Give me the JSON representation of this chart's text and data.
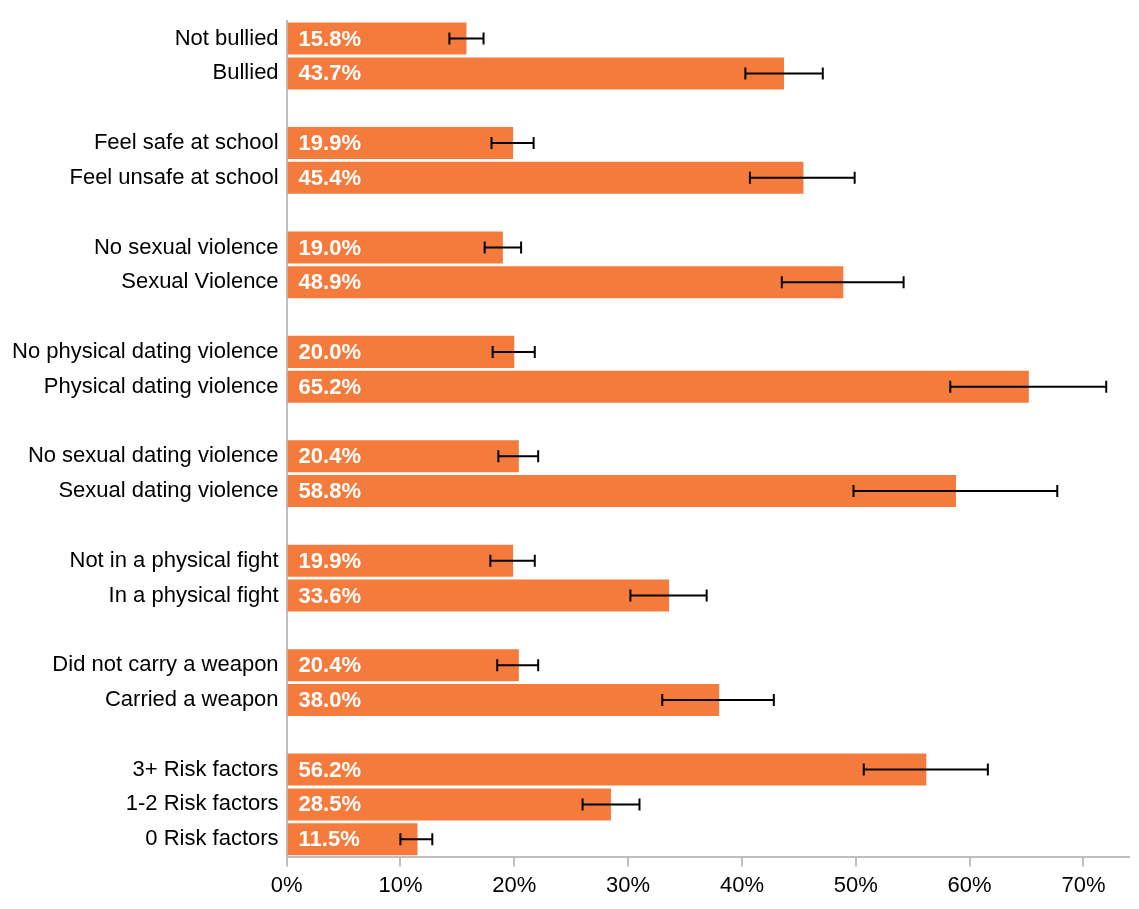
{
  "chart_data": {
    "type": "bar",
    "orientation": "horizontal",
    "categories": [
      "Not bullied",
      "Bullied",
      null,
      "Feel safe at school",
      "Feel unsafe at school",
      null,
      "No sexual violence",
      "Sexual Violence",
      null,
      "No physical dating violence",
      "Physical dating violence",
      null,
      "No sexual dating violence",
      "Sexual dating violence",
      null,
      "Not in a physical fight",
      "In a physical fight",
      null,
      "Did not carry a weapon",
      "Carried a weapon",
      null,
      "3+ Risk factors",
      "1-2 Risk factors",
      "0 Risk factors"
    ],
    "values": [
      15.8,
      43.7,
      null,
      19.9,
      45.4,
      null,
      19.0,
      48.9,
      null,
      20.0,
      65.2,
      null,
      20.4,
      58.8,
      null,
      19.9,
      33.6,
      null,
      20.4,
      38.0,
      null,
      56.2,
      28.5,
      11.5
    ],
    "value_labels": [
      "15.8%",
      "43.7%",
      null,
      "19.9%",
      "45.4%",
      null,
      "19.0%",
      "48.9%",
      null,
      "20.0%",
      "65.2%",
      null,
      "20.4%",
      "58.8%",
      null,
      "19.9%",
      "33.6%",
      null,
      "20.4%",
      "38.0%",
      null,
      "56.2%",
      "28.5%",
      "11.5%"
    ],
    "errors": [
      [
        14.3,
        17.3
      ],
      [
        40.3,
        47.1
      ],
      null,
      [
        18.0,
        21.7
      ],
      [
        40.7,
        49.9
      ],
      null,
      [
        17.4,
        20.6
      ],
      [
        43.5,
        54.2
      ],
      null,
      [
        18.1,
        21.8
      ],
      [
        58.3,
        72.0
      ],
      null,
      [
        18.6,
        22.1
      ],
      [
        49.8,
        67.7
      ],
      null,
      [
        17.9,
        21.8
      ],
      [
        30.2,
        36.9
      ],
      null,
      [
        18.5,
        22.1
      ],
      [
        33.0,
        42.8
      ],
      null,
      [
        50.7,
        61.6
      ],
      [
        26.0,
        31.0
      ],
      [
        10.0,
        12.8
      ]
    ],
    "color": "#f47b3c",
    "xlim": [
      0,
      74
    ],
    "xticks": [
      {
        "value": 0,
        "label": "0%"
      },
      {
        "value": 10,
        "label": "10%"
      },
      {
        "value": 20,
        "label": "20%"
      },
      {
        "value": 30,
        "label": "30%"
      },
      {
        "value": 40,
        "label": "40%"
      },
      {
        "value": 50,
        "label": "50%"
      },
      {
        "value": 60,
        "label": "60%"
      },
      {
        "value": 70,
        "label": "70%"
      }
    ],
    "grid": false,
    "legend": false
  }
}
